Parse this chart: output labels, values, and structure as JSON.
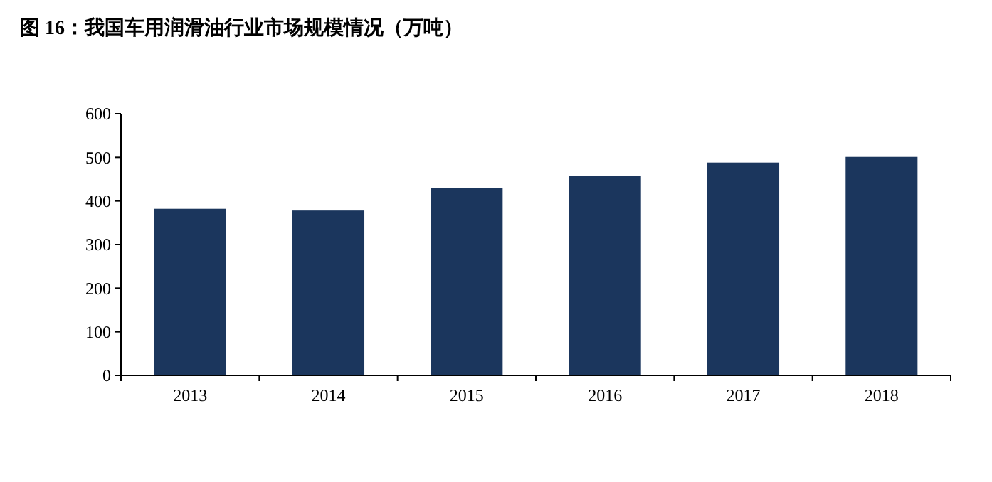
{
  "chart_data": {
    "type": "bar",
    "title": "图 16：我国车用润滑油行业市场规模情况（万吨）",
    "categories": [
      "2013",
      "2014",
      "2015",
      "2016",
      "2017",
      "2018"
    ],
    "values": [
      382,
      378,
      430,
      457,
      488,
      501
    ],
    "color": "#1b365d",
    "ylim": [
      0,
      600
    ],
    "yticks": [
      0,
      100,
      200,
      300,
      400,
      500,
      600
    ]
  }
}
